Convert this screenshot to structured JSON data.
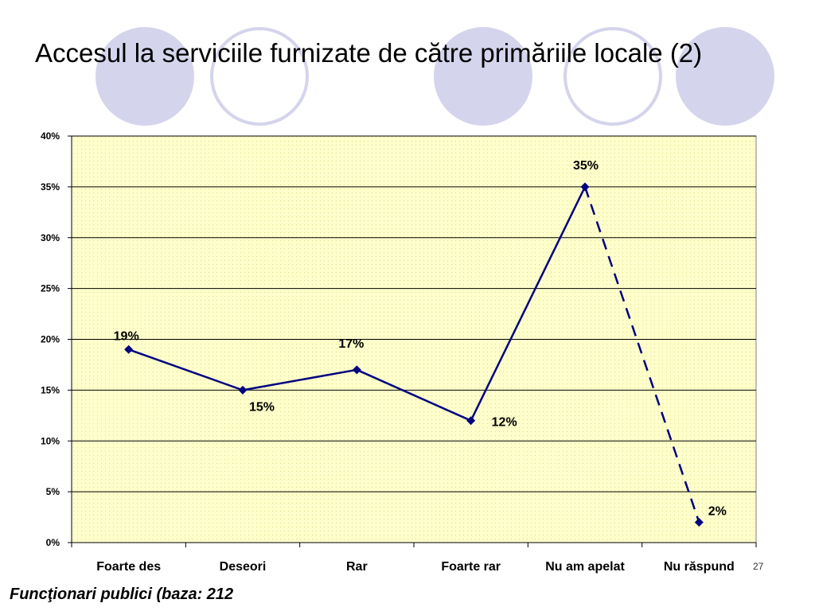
{
  "slide": {
    "title": "Accesul la serviciile furnizate de către primăriile locale (2)",
    "footer": "Funcţionari publici (baza: 212",
    "number": "27"
  },
  "colors": {
    "line": "#000080",
    "plot_background": "#FFFFCC",
    "circle_filled": "#D4D4EC",
    "circle_outline": "#D4D4EC"
  },
  "chart_data": {
    "type": "line",
    "categories": [
      "Foarte des",
      "Deseori",
      "Rar",
      "Foarte rar",
      "Nu am apelat",
      "Nu răspund"
    ],
    "values": [
      19,
      15,
      17,
      12,
      35,
      2
    ],
    "data_labels": [
      "19%",
      "15%",
      "17%",
      "12%",
      "35%",
      "2%"
    ],
    "y_ticks": [
      "0%",
      "5%",
      "10%",
      "15%",
      "20%",
      "25%",
      "30%",
      "35%",
      "40%"
    ],
    "ylim": [
      0,
      40
    ],
    "y_step": 5,
    "dashed_last_segment": true,
    "marker": "diamond",
    "grid": true,
    "legend": "none"
  }
}
